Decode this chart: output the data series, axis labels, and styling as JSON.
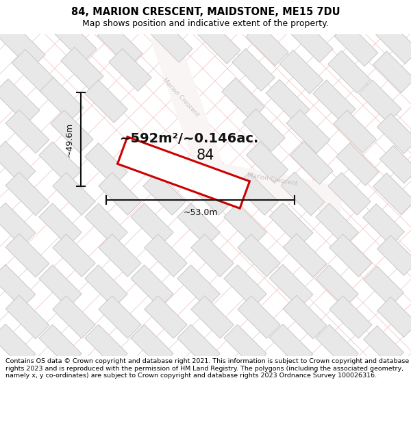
{
  "title": "84, MARION CRESCENT, MAIDSTONE, ME15 7DU",
  "subtitle": "Map shows position and indicative extent of the property.",
  "footer": "Contains OS data © Crown copyright and database right 2021. This information is subject to Crown copyright and database rights 2023 and is reproduced with the permission of HM Land Registry. The polygons (including the associated geometry, namely x, y co-ordinates) are subject to Crown copyright and database rights 2023 Ordnance Survey 100026316.",
  "area_label": "~592m²/~0.146ac.",
  "width_label": "~53.0m",
  "height_label": "~49.6m",
  "property_label": "84",
  "bg_color": "#ffffff",
  "map_bg": "#ffffff",
  "grid_color": "#f2c8c8",
  "building_fill": "#e8e8e8",
  "building_edge": "#cccccc",
  "road_fill": "#f8f0f0",
  "property_fill": "#ffffff",
  "property_edge": "#cc0000",
  "street_color": "#cccccc",
  "dim_color": "#111111",
  "title_fontsize": 10.5,
  "subtitle_fontsize": 9,
  "footer_fontsize": 6.8,
  "area_fontsize": 14,
  "dim_fontsize": 9,
  "label_fontsize": 15
}
